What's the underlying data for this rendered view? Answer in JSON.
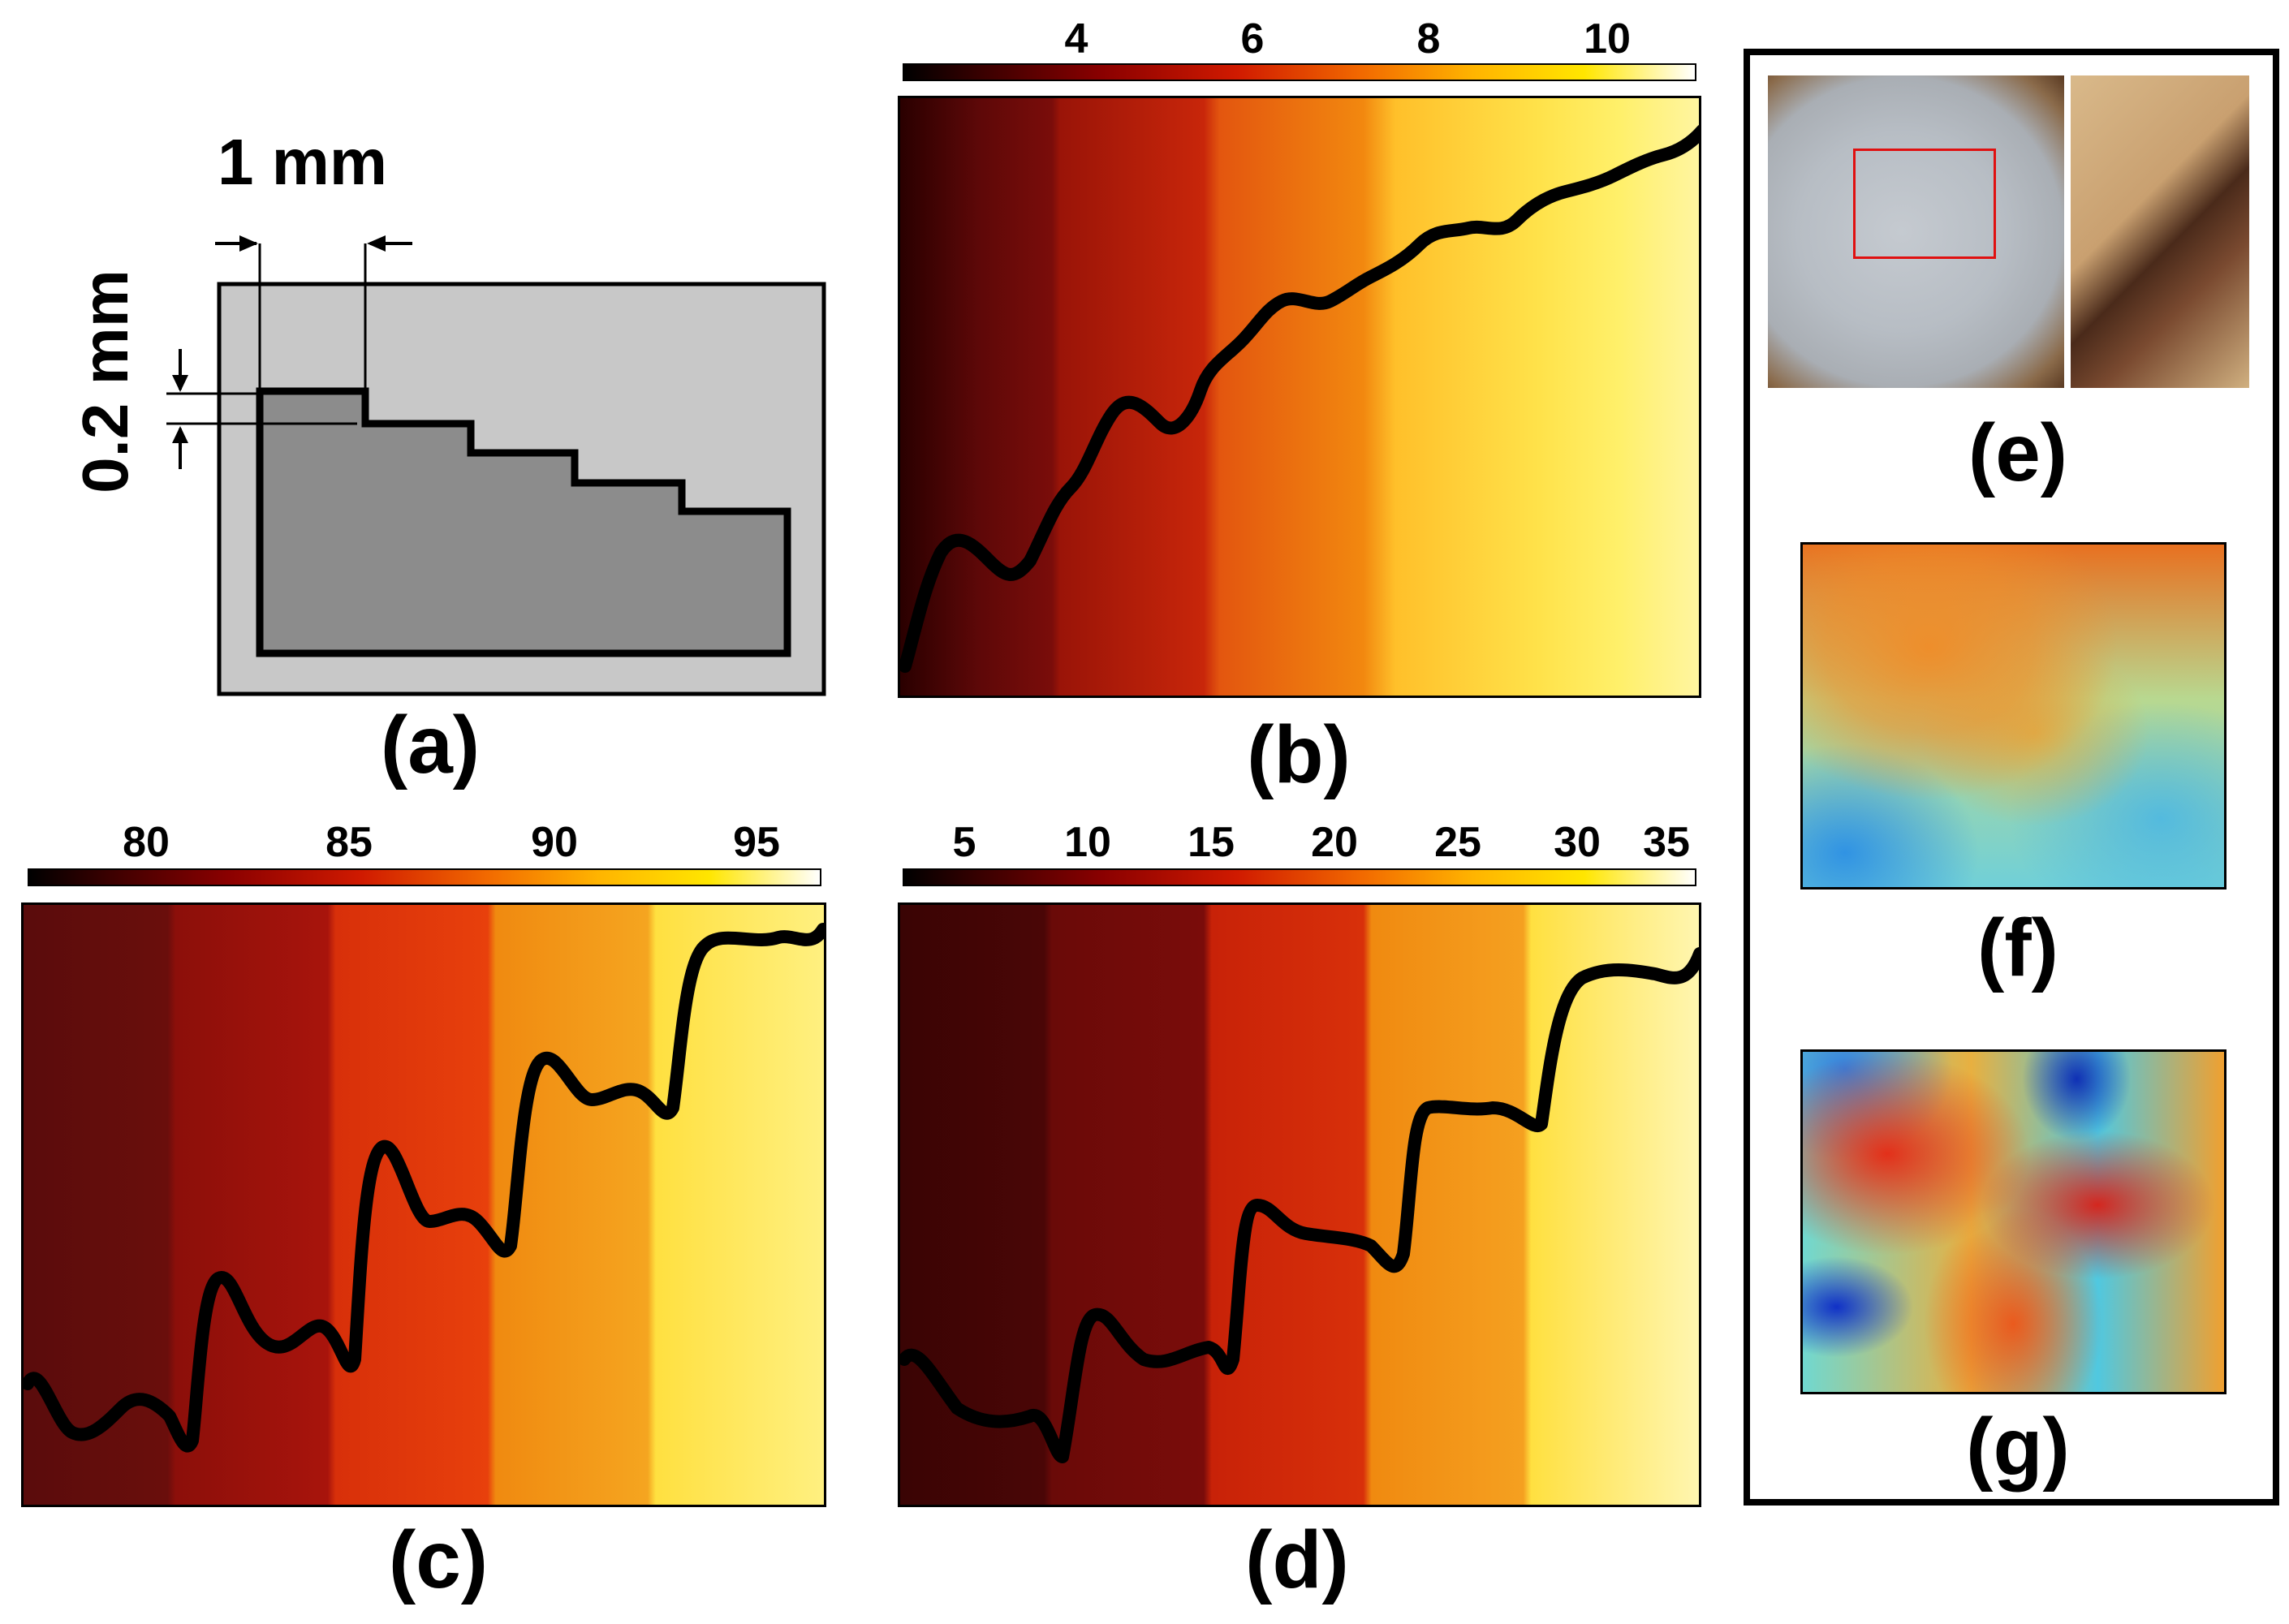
{
  "figure": {
    "panel_a": {
      "label": "(a)",
      "dim_width": "1 mm",
      "dim_height": "0.2 mm"
    },
    "panel_b": {
      "label": "(b)",
      "colorbar_ticks": [
        "4",
        "6",
        "8",
        "10"
      ]
    },
    "panel_c": {
      "label": "(c)",
      "colorbar_ticks": [
        "80",
        "85",
        "90",
        "95"
      ]
    },
    "panel_d": {
      "label": "(d)",
      "colorbar_ticks": [
        "5",
        "10",
        "15",
        "20",
        "25",
        "30",
        "35"
      ]
    },
    "panel_e": {
      "label": "(e)"
    },
    "panel_f": {
      "label": "(f)"
    },
    "panel_g": {
      "label": "(g)"
    }
  },
  "colors": {
    "dark_red": "#5a0a0a",
    "red": "#c81e00",
    "orange": "#f08a10",
    "yellow": "#ffe640",
    "gray_light": "#c8c8c8",
    "gray_dark": "#8c8c8c"
  }
}
